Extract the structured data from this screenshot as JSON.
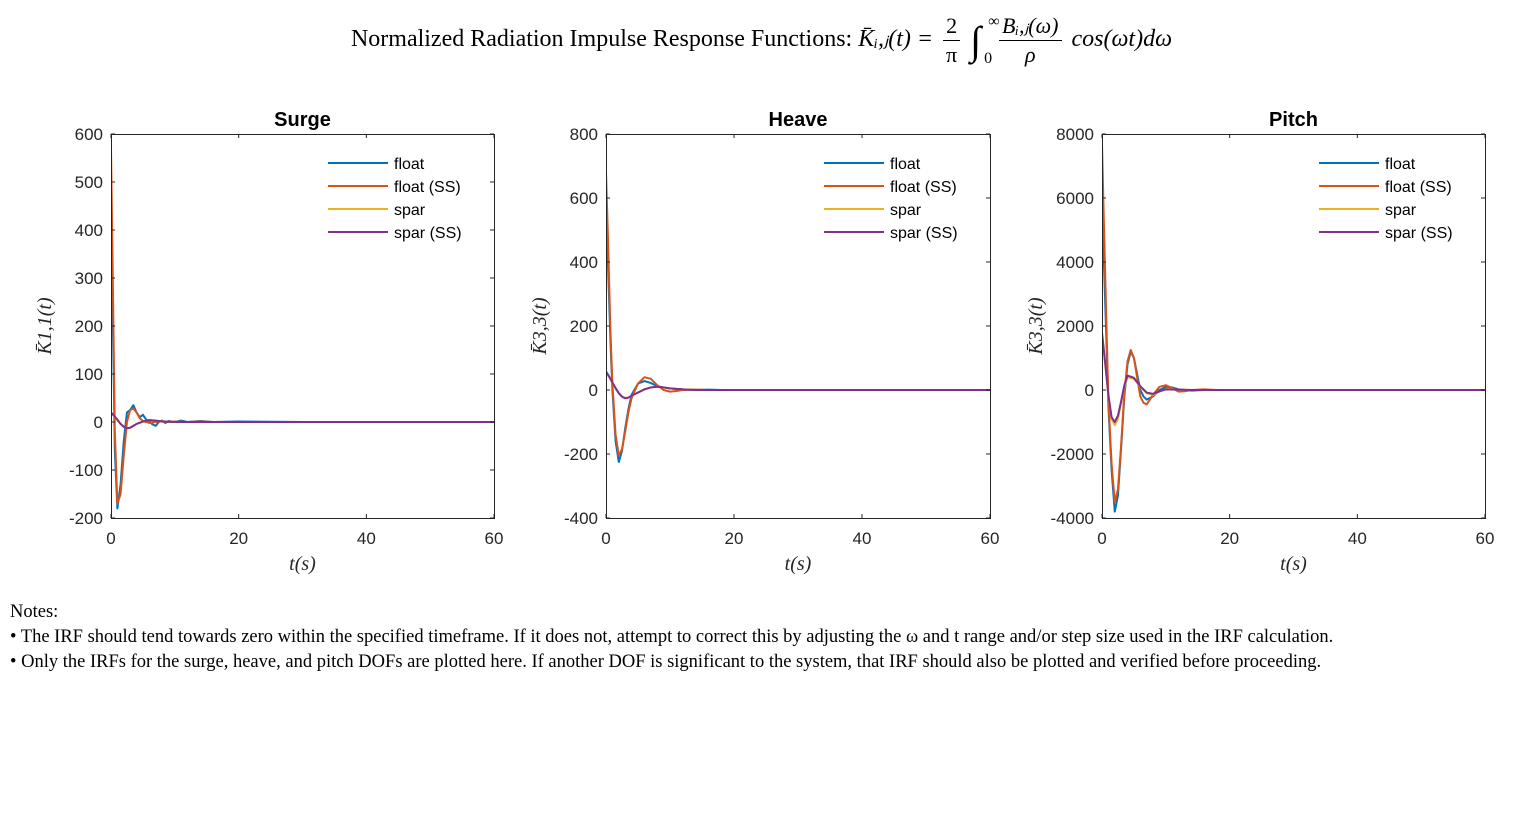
{
  "title": {
    "text": "Normalized Radiation Impulse Response Functions:",
    "lhs": "K̄ᵢ,ⱼ(t) =",
    "frac1_num": "2",
    "frac1_den": "π",
    "int_upper": "∞",
    "int_lower": "0",
    "frac2_num": "Bᵢ,ⱼ(ω)",
    "frac2_den": "ρ",
    "tail": "cos(ωt)dω"
  },
  "legend": [
    "float",
    "float (SS)",
    "spar",
    "spar (SS)"
  ],
  "colors": {
    "float": "#0072BD",
    "float_ss": "#D95319",
    "spar": "#EDB120",
    "spar_ss": "#7E2F8E"
  },
  "chart_data": [
    {
      "type": "line",
      "title": "Surge",
      "xlabel": "t(s)",
      "ylabel": "K̄1,1(t)",
      "xlim": [
        0,
        60
      ],
      "ylim": [
        -200,
        600
      ],
      "xticks": [
        "0",
        "20",
        "40",
        "60"
      ],
      "yticks": [
        "-200",
        "-100",
        "0",
        "100",
        "200",
        "300",
        "400",
        "500",
        "600"
      ],
      "legend_position": "top-right",
      "series": [
        {
          "name": "float",
          "color": "#0072BD",
          "x": [
            0,
            0.3,
            0.6,
            1.0,
            1.5,
            2.0,
            2.5,
            3.0,
            3.5,
            4.0,
            4.5,
            5.0,
            5.5,
            6.0,
            6.5,
            7.0,
            7.5,
            8.0,
            8.5,
            9.0,
            10,
            11,
            12,
            14,
            16,
            20,
            30,
            40,
            50,
            60
          ],
          "y": [
            450,
            200,
            -60,
            -180,
            -130,
            -40,
            20,
            25,
            35,
            20,
            10,
            15,
            5,
            2,
            -5,
            -8,
            0,
            3,
            -2,
            2,
            0,
            3,
            0,
            2,
            0,
            1,
            0,
            0,
            0,
            0
          ]
        },
        {
          "name": "float (SS)",
          "color": "#D95319",
          "x": [
            0,
            0.3,
            0.6,
            1.0,
            1.5,
            2.0,
            2.5,
            3.0,
            3.5,
            4.0,
            4.5,
            5.0,
            6.0,
            7.0,
            8.0,
            9.0,
            10,
            12,
            14,
            16,
            20,
            30,
            40,
            50,
            60
          ],
          "y": [
            570,
            280,
            -20,
            -170,
            -150,
            -70,
            0,
            25,
            28,
            20,
            8,
            2,
            -2,
            0,
            2,
            0,
            1,
            0,
            1,
            0,
            0,
            0,
            0,
            0,
            0
          ]
        },
        {
          "name": "spar",
          "color": "#EDB120",
          "x": [
            0,
            0.5,
            1.0,
            1.5,
            2.0,
            2.5,
            3.0,
            3.5,
            4.0,
            5.0,
            6.0,
            7.0,
            8.0,
            10,
            12,
            15,
            20,
            30,
            40,
            50,
            60
          ],
          "y": [
            18,
            12,
            4,
            -4,
            -10,
            -13,
            -12,
            -8,
            -4,
            1,
            4,
            3,
            1,
            0,
            0,
            0,
            0,
            0,
            0,
            0,
            0
          ]
        },
        {
          "name": "spar (SS)",
          "color": "#7E2F8E",
          "x": [
            0,
            0.5,
            1.0,
            1.5,
            2.0,
            2.5,
            3.0,
            3.5,
            4.0,
            5.0,
            6.0,
            7.0,
            8.0,
            10,
            12,
            15,
            20,
            30,
            40,
            50,
            60
          ],
          "y": [
            20,
            13,
            5,
            -4,
            -10,
            -13,
            -12,
            -8,
            -4,
            1,
            4,
            3,
            1,
            0,
            0,
            0,
            0,
            0,
            0,
            0,
            0
          ]
        }
      ]
    },
    {
      "type": "line",
      "title": "Heave",
      "xlabel": "t(s)",
      "ylabel": "K̄3,3(t)",
      "xlim": [
        0,
        60
      ],
      "ylim": [
        -400,
        800
      ],
      "xticks": [
        "0",
        "20",
        "40",
        "60"
      ],
      "yticks": [
        "-400",
        "-200",
        "0",
        "200",
        "400",
        "600",
        "800"
      ],
      "legend_position": "top-right",
      "series": [
        {
          "name": "float",
          "color": "#0072BD",
          "x": [
            0,
            0.3,
            0.7,
            1.0,
            1.5,
            2.0,
            2.5,
            3.0,
            3.5,
            4.0,
            5.0,
            6.0,
            7.0,
            8.0,
            9.0,
            10,
            11,
            12,
            14,
            16,
            18,
            20,
            30,
            40,
            50,
            60
          ],
          "y": [
            560,
            400,
            150,
            0,
            -160,
            -225,
            -190,
            -120,
            -60,
            -15,
            20,
            28,
            22,
            12,
            8,
            5,
            3,
            2,
            0,
            1,
            0,
            0,
            0,
            0,
            0,
            0
          ]
        },
        {
          "name": "float (SS)",
          "color": "#D95319",
          "x": [
            0,
            0.3,
            0.7,
            1.0,
            1.5,
            2.0,
            2.5,
            3.0,
            3.5,
            4.0,
            5.0,
            6.0,
            7.0,
            8.0,
            9.0,
            10,
            11,
            12,
            14,
            16,
            18,
            20,
            30,
            40,
            50,
            60
          ],
          "y": [
            680,
            480,
            180,
            20,
            -140,
            -205,
            -185,
            -130,
            -70,
            -25,
            20,
            40,
            35,
            15,
            0,
            -5,
            -3,
            0,
            1,
            0,
            0,
            0,
            0,
            0,
            0,
            0
          ]
        },
        {
          "name": "spar",
          "color": "#EDB120",
          "x": [
            0,
            0.5,
            1.0,
            1.5,
            2.0,
            2.5,
            3.0,
            3.5,
            4.0,
            5.0,
            6.0,
            7.0,
            8.0,
            9.0,
            10,
            12,
            14,
            16,
            20,
            30,
            40,
            50,
            60
          ],
          "y": [
            55,
            40,
            22,
            5,
            -10,
            -20,
            -25,
            -23,
            -18,
            -8,
            2,
            8,
            10,
            8,
            5,
            2,
            0,
            0,
            0,
            0,
            0,
            0,
            0
          ]
        },
        {
          "name": "spar (SS)",
          "color": "#7E2F8E",
          "x": [
            0,
            0.5,
            1.0,
            1.5,
            2.0,
            2.5,
            3.0,
            3.5,
            4.0,
            5.0,
            6.0,
            7.0,
            8.0,
            9.0,
            10,
            12,
            14,
            16,
            20,
            30,
            40,
            50,
            60
          ],
          "y": [
            58,
            42,
            24,
            6,
            -10,
            -21,
            -26,
            -24,
            -18,
            -8,
            2,
            8,
            10,
            8,
            5,
            2,
            0,
            0,
            0,
            0,
            0,
            0,
            0
          ]
        }
      ]
    },
    {
      "type": "line",
      "title": "Pitch",
      "xlabel": "t(s)",
      "ylabel": "K̄3,3(t)",
      "xlim": [
        0,
        60
      ],
      "ylim": [
        -4000,
        8000
      ],
      "xticks": [
        "0",
        "20",
        "40",
        "60"
      ],
      "yticks": [
        "-4000",
        "-2000",
        "0",
        "2000",
        "4000",
        "6000",
        "8000"
      ],
      "legend_position": "top-right",
      "series": [
        {
          "name": "float",
          "color": "#0072BD",
          "x": [
            0,
            0.3,
            0.7,
            1.0,
            1.5,
            2.0,
            2.5,
            3.0,
            3.5,
            4.0,
            4.5,
            5.0,
            5.5,
            6.0,
            6.5,
            7.0,
            8.0,
            9.0,
            10,
            11,
            12,
            13,
            14,
            16,
            18,
            20,
            30,
            40,
            50,
            60
          ],
          "y": [
            6200,
            4000,
            1500,
            -500,
            -2500,
            -3800,
            -3300,
            -1800,
            -200,
            800,
            1200,
            1000,
            500,
            0,
            -200,
            -300,
            -200,
            0,
            100,
            80,
            20,
            0,
            -20,
            0,
            0,
            0,
            0,
            0,
            0,
            0
          ]
        },
        {
          "name": "float (SS)",
          "color": "#D95319",
          "x": [
            0,
            0.3,
            0.7,
            1.0,
            1.5,
            2.0,
            2.5,
            3.0,
            3.5,
            4.0,
            4.5,
            5.0,
            5.5,
            6.0,
            6.5,
            7.0,
            8.0,
            9.0,
            10,
            11,
            12,
            13,
            14,
            16,
            18,
            20,
            30,
            40,
            50,
            60
          ],
          "y": [
            7700,
            5200,
            2000,
            -300,
            -2300,
            -3500,
            -3100,
            -1700,
            -100,
            900,
            1250,
            1000,
            400,
            -200,
            -400,
            -450,
            -150,
            100,
            150,
            60,
            -50,
            -40,
            0,
            20,
            0,
            0,
            0,
            0,
            0,
            0
          ]
        },
        {
          "name": "spar",
          "color": "#EDB120",
          "x": [
            0,
            0.5,
            1.0,
            1.5,
            2.0,
            2.5,
            3.0,
            3.5,
            4.0,
            5.0,
            6.0,
            7.0,
            8.0,
            9.0,
            10,
            12,
            14,
            16,
            20,
            30,
            40,
            50,
            60
          ],
          "y": [
            1700,
            800,
            -200,
            -900,
            -1100,
            -900,
            -400,
            100,
            400,
            350,
            100,
            -100,
            -150,
            -50,
            30,
            10,
            0,
            0,
            0,
            0,
            0,
            0,
            0
          ]
        },
        {
          "name": "spar (SS)",
          "color": "#7E2F8E",
          "x": [
            0,
            0.5,
            1.0,
            1.5,
            2.0,
            2.5,
            3.0,
            3.5,
            4.0,
            5.0,
            6.0,
            7.0,
            8.0,
            9.0,
            10,
            12,
            14,
            16,
            20,
            30,
            40,
            50,
            60
          ],
          "y": [
            1800,
            850,
            -150,
            -850,
            -1000,
            -800,
            -350,
            150,
            450,
            380,
            120,
            -80,
            -120,
            -40,
            20,
            10,
            0,
            0,
            0,
            0,
            0,
            0,
            0
          ]
        }
      ]
    }
  ],
  "notes": {
    "heading": "Notes:",
    "items": [
      "• The IRF should tend towards zero within the specified timeframe. If it does not, attempt to correct this by adjusting the ω and t range and/or step size used in the IRF calculation.",
      "• Only the IRFs for the surge, heave, and pitch DOFs are plotted here. If another DOF is significant to the system, that IRF should also be plotted and verified before proceeding."
    ]
  }
}
